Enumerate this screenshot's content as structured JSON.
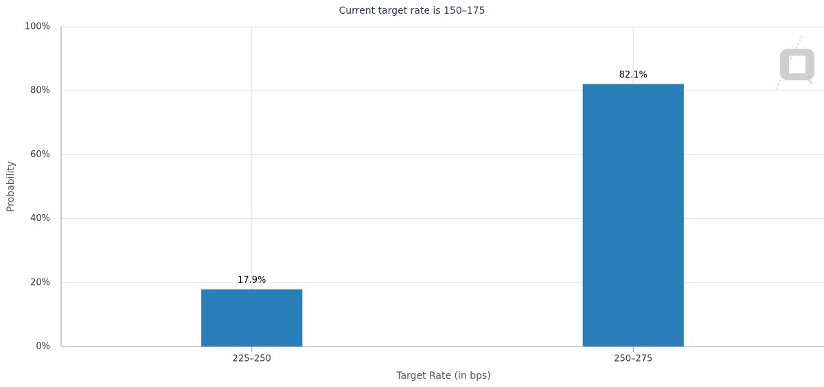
{
  "chart_data": {
    "type": "bar",
    "title": "Current target rate is 150–175",
    "x_label": "Target Rate (in bps)",
    "y_label": "Probability",
    "categories": [
      "225–250",
      "250–275"
    ],
    "values": [
      17.9,
      82.1
    ],
    "value_labels": [
      "17.9%",
      "82.1%"
    ],
    "color": "#2a7fb8",
    "ylim": [
      0,
      100
    ],
    "yticks": [
      {
        "value": 0,
        "label": "0%"
      },
      {
        "value": 20,
        "label": "20%"
      },
      {
        "value": 40,
        "label": "40%"
      },
      {
        "value": 60,
        "label": "60%"
      },
      {
        "value": 80,
        "label": "80%"
      },
      {
        "value": 100,
        "label": "100%"
      }
    ],
    "grid": true
  }
}
